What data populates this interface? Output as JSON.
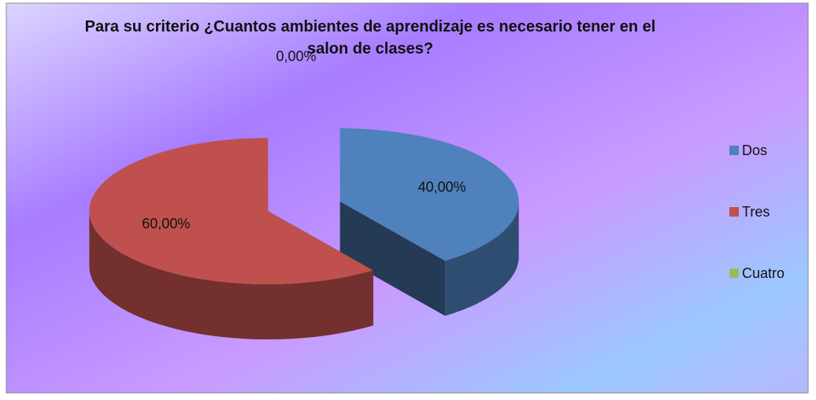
{
  "chart_data": {
    "type": "pie",
    "title": "Para su criterio ¿Cuantos ambientes de aprendizaje es necesario tener en el salon de clases?",
    "categories": [
      "Dos",
      "Tres",
      "Cuatro"
    ],
    "values": [
      40,
      60,
      0
    ],
    "value_labels": [
      "40,00%",
      "60,00%",
      "0,00%"
    ],
    "colors": [
      "#4f81bd",
      "#c0504d",
      "#9bbb59"
    ],
    "legend": "right"
  }
}
